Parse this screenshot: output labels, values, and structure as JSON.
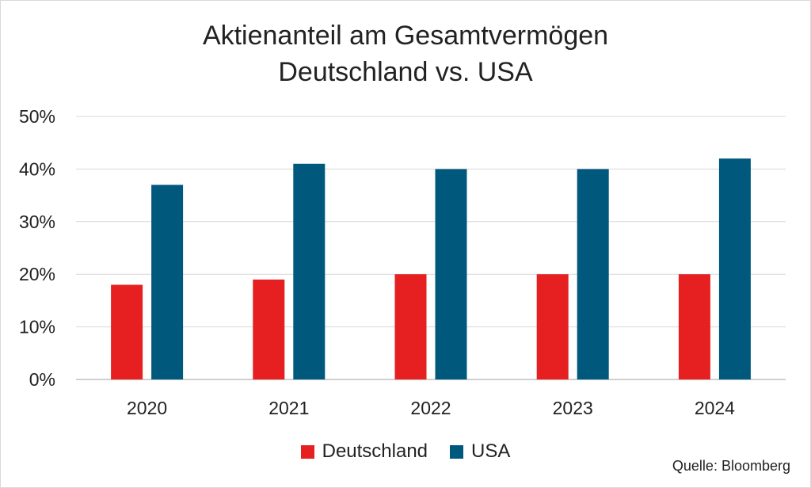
{
  "chart_data": {
    "type": "bar",
    "title_line1": "Aktienanteil am Gesamtvermögen",
    "title_line2": "Deutschland vs. USA",
    "categories": [
      "2020",
      "2021",
      "2022",
      "2023",
      "2024"
    ],
    "series": [
      {
        "name": "Deutschland",
        "color": "#e62020",
        "values": [
          18,
          19,
          20,
          20,
          20
        ]
      },
      {
        "name": "USA",
        "color": "#00587c",
        "values": [
          37,
          41,
          40,
          40,
          42
        ]
      }
    ],
    "ylim": [
      0,
      50
    ],
    "yticks": [
      "0%",
      "10%",
      "20%",
      "30%",
      "40%",
      "50%"
    ],
    "grid": true,
    "legend_position": "bottom",
    "source": "Quelle: Bloomberg"
  }
}
